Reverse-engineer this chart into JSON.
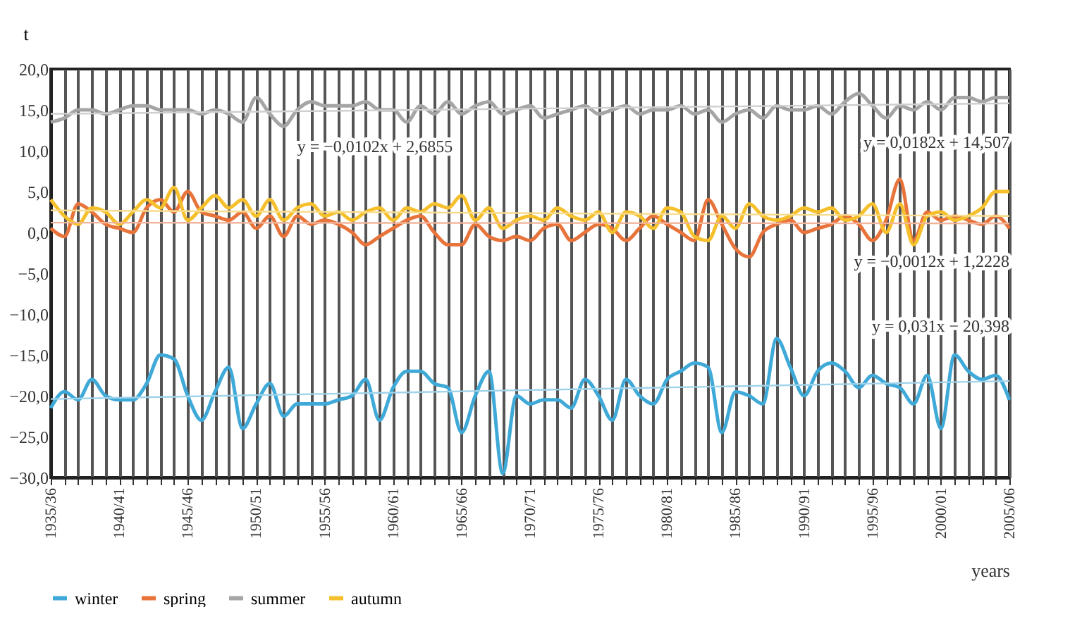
{
  "chart_data": {
    "type": "line",
    "ylabel": "t",
    "xlabel": "years",
    "categories": [
      "1935/36",
      null,
      null,
      null,
      null,
      "1940/41",
      null,
      null,
      null,
      null,
      "1945/46",
      null,
      null,
      null,
      null,
      "1950/51",
      null,
      null,
      null,
      null,
      "1955/56",
      null,
      null,
      null,
      null,
      "1960/61",
      null,
      null,
      null,
      null,
      "1965/66",
      null,
      null,
      null,
      null,
      "1970/71",
      null,
      null,
      null,
      null,
      "1975/76",
      null,
      null,
      null,
      null,
      "1980/81",
      null,
      null,
      null,
      null,
      "1985/86",
      null,
      null,
      null,
      null,
      "1990/91",
      null,
      null,
      null,
      null,
      "1995/96",
      null,
      null,
      null,
      null,
      "2000/01",
      null,
      null,
      null,
      null,
      "2005/06"
    ],
    "series": [
      {
        "name": "winter",
        "color": "#3fa9d8",
        "values": [
          -21.5,
          -19.5,
          -20.5,
          -18,
          -20,
          -20.5,
          -20.5,
          -18.5,
          -15,
          -15.5,
          -20,
          -23,
          -19.5,
          -16.5,
          -24,
          -21,
          -18.5,
          -22.5,
          -21,
          -21,
          -21,
          -20.5,
          -20,
          -18,
          -23,
          -19,
          -17,
          -17,
          -18.5,
          -19,
          -24.5,
          -20,
          -17,
          -29.5,
          -20,
          -21,
          -20.5,
          -20.5,
          -21.5,
          -18,
          -20,
          -23,
          -18,
          -20,
          -21,
          -18,
          -17,
          -16,
          -16.5,
          -24.5,
          -19.5,
          -20,
          -21,
          -13,
          -16.5,
          -20,
          -17,
          -16,
          -17,
          -19,
          -17.5,
          -18.5,
          -19,
          -21,
          -17.5,
          -24,
          -15,
          -17,
          -18,
          -17.5,
          -20.5
        ]
      },
      {
        "name": "spring",
        "color": "#e8743b",
        "values": [
          0.5,
          -0.5,
          3.5,
          2.5,
          1,
          0.5,
          0,
          3,
          4,
          2.5,
          5,
          2.5,
          2,
          1.5,
          2.5,
          0.5,
          2,
          -0.5,
          2,
          1,
          1.5,
          1,
          0,
          -1.5,
          -0.5,
          0.5,
          1.5,
          2,
          0,
          -1.5,
          -1.5,
          1,
          -0.5,
          -1,
          -0.5,
          -1,
          0.5,
          1,
          -1,
          0,
          1,
          0.5,
          -1,
          0.5,
          2,
          1,
          0,
          -1,
          4,
          1,
          -2,
          -3,
          0,
          1,
          1.5,
          0,
          0.5,
          1,
          2,
          1,
          -1,
          1.5,
          6.5,
          -1,
          2.5,
          1.5,
          2,
          1.5,
          1,
          2,
          0.5
        ]
      },
      {
        "name": "summer",
        "color": "#a5a5a5",
        "values": [
          13.5,
          14,
          15,
          15,
          14.5,
          15,
          15.5,
          15.5,
          15,
          15,
          15,
          14.5,
          15,
          14.5,
          13.5,
          16.5,
          14.5,
          13,
          15,
          16,
          15.5,
          15.5,
          15.5,
          16,
          15,
          15,
          13.5,
          15.5,
          14.5,
          16,
          14.5,
          15.5,
          16,
          14.5,
          15,
          15.5,
          14,
          14.5,
          15,
          15.5,
          14.5,
          15,
          15.5,
          14.5,
          15,
          15,
          15.5,
          14.5,
          15,
          13.5,
          14.5,
          15,
          14,
          15.5,
          15,
          15,
          15.5,
          14.5,
          16,
          17,
          15.5,
          14,
          15.5,
          15,
          16,
          15,
          16.5,
          16.5,
          16,
          16.5,
          16.5
        ]
      },
      {
        "name": "autumn",
        "color": "#f5c02c",
        "values": [
          4,
          2,
          1,
          3,
          2.5,
          1,
          2.5,
          4,
          3,
          5.5,
          1.5,
          3,
          4.5,
          3,
          4,
          2,
          4,
          1.5,
          3,
          3.5,
          2,
          2.5,
          1.5,
          2.5,
          3,
          1.5,
          3,
          2.5,
          3.5,
          3,
          4.5,
          1.5,
          3,
          0.5,
          1.5,
          2,
          1.5,
          3,
          2,
          1.5,
          2.5,
          0,
          2.5,
          2,
          0.5,
          3,
          2.5,
          -0.5,
          -1,
          2,
          0.5,
          3.5,
          2,
          1.5,
          2,
          3,
          2.5,
          3,
          1.5,
          2,
          3.5,
          0,
          3.5,
          -1.5,
          2,
          2.5,
          1.5,
          2,
          3,
          5,
          5
        ]
      },
      {
        "type": "line",
        "color": "#9fd3ea",
        "x": [
          "1935/36",
          "2005/06"
        ],
        "values": [
          -20.4,
          -18.2
        ]
      },
      {
        "type": "line",
        "color": "#f2b49a",
        "x": [
          "1935/36",
          "2005/06"
        ],
        "values": [
          1.2,
          1.1
        ]
      },
      {
        "type": "line",
        "color": "#cfcfcf",
        "x": [
          "1935/36",
          "2005/06"
        ],
        "values": [
          14.5,
          15.8
        ]
      },
      {
        "type": "line",
        "color": "#f8dc8e",
        "x": [
          "1935/36",
          "2005/06"
        ],
        "values": [
          2.7,
          2.0
        ]
      }
    ],
    "ylim": [
      -30,
      20
    ],
    "yticks": [
      {
        "value": -30,
        "label": "−30,0"
      },
      {
        "value": -25,
        "label": "−25,0"
      },
      {
        "value": -20,
        "label": "−20,0"
      },
      {
        "value": -15,
        "label": "−15,0"
      },
      {
        "value": -10,
        "label": "−10,0"
      },
      {
        "value": -5,
        "label": "−5,0"
      },
      {
        "value": 0,
        "label": "0,0"
      },
      {
        "value": 5,
        "label": "5,0"
      },
      {
        "value": 10,
        "label": "10,0"
      },
      {
        "value": 15,
        "label": "15,0"
      },
      {
        "value": 20,
        "label": "20,0"
      }
    ],
    "grid": "x",
    "legend": "bottom",
    "marker": "none",
    "line_style": "solid",
    "annotations": [
      "y = −0,0102x + 2,6855",
      "y = 0,0182x + 14,507",
      "y = −0,0012x + 1,2228",
      "y = 0,031x − 20,398"
    ]
  }
}
